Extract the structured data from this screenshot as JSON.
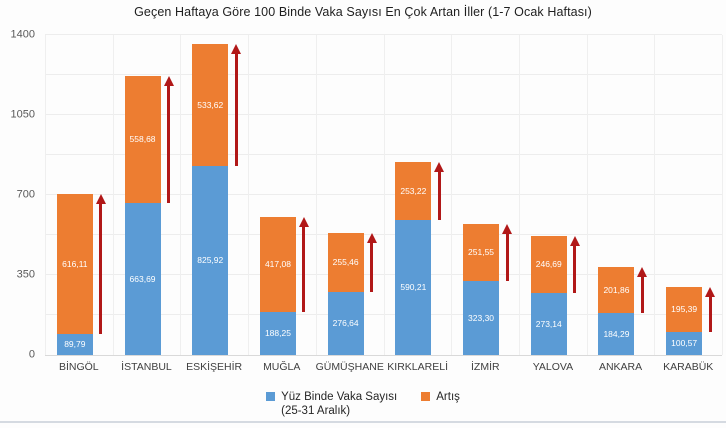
{
  "title": "Geçen Haftaya Göre 100 Binde Vaka Sayısı En Çok Artan İller (1-7 Ocak Haftası)",
  "chart_data": {
    "type": "bar",
    "stacked": true,
    "title": "Geçen Haftaya Göre 100 Binde Vaka Sayısı En Çok Artan İller (1-7 Ocak Haftası)",
    "categories": [
      "BİNGÖL",
      "İSTANBUL",
      "ESKİŞEHİR",
      "MUĞLA",
      "GÜMÜŞHANE",
      "KIRKLARELİ",
      "İZMİR",
      "YALOVA",
      "ANKARA",
      "KARABÜK"
    ],
    "series": [
      {
        "name": "Yüz Binde Vaka Sayısı (25-31 Aralık)",
        "color": "#5b9bd5",
        "values": [
          89.79,
          663.69,
          825.92,
          188.25,
          276.64,
          590.21,
          323.3,
          273.14,
          184.29,
          100.57
        ],
        "labels": [
          "89,79",
          "663,69",
          "825,92",
          "188,25",
          "276,64",
          "590,21",
          "323,30",
          "273,14",
          "184,29",
          "100,57"
        ]
      },
      {
        "name": "Artış",
        "color": "#ed7d31",
        "values": [
          616.11,
          558.68,
          533.62,
          417.08,
          255.46,
          253.22,
          251.55,
          246.69,
          201.86,
          195.39
        ],
        "labels": [
          "616,11",
          "558,68",
          "533,62",
          "417,08",
          "255,46",
          "253,22",
          "251,55",
          "246,69",
          "201,86",
          "195,39"
        ]
      }
    ],
    "ylim": [
      0,
      1400
    ],
    "yticks": [
      0,
      350,
      700,
      1050,
      1400
    ],
    "grid_step": 175,
    "grid": true,
    "legend_position": "bottom",
    "annotation": "red up-arrow beside each bar spanning the Artış segment"
  },
  "legend": {
    "item1_line1": "Yüz Binde Vaka Sayısı",
    "item1_line2": "(25-31 Aralık)",
    "item2": "Artış"
  },
  "colors": {
    "bar_blue": "#5b9bd5",
    "bar_orange": "#ed7d31",
    "arrow_red": "#b11818",
    "gridline": "#ededed",
    "axis_text": "#595959",
    "title_text": "#1f1f1f",
    "bottom_strip": "#d5dae1"
  }
}
